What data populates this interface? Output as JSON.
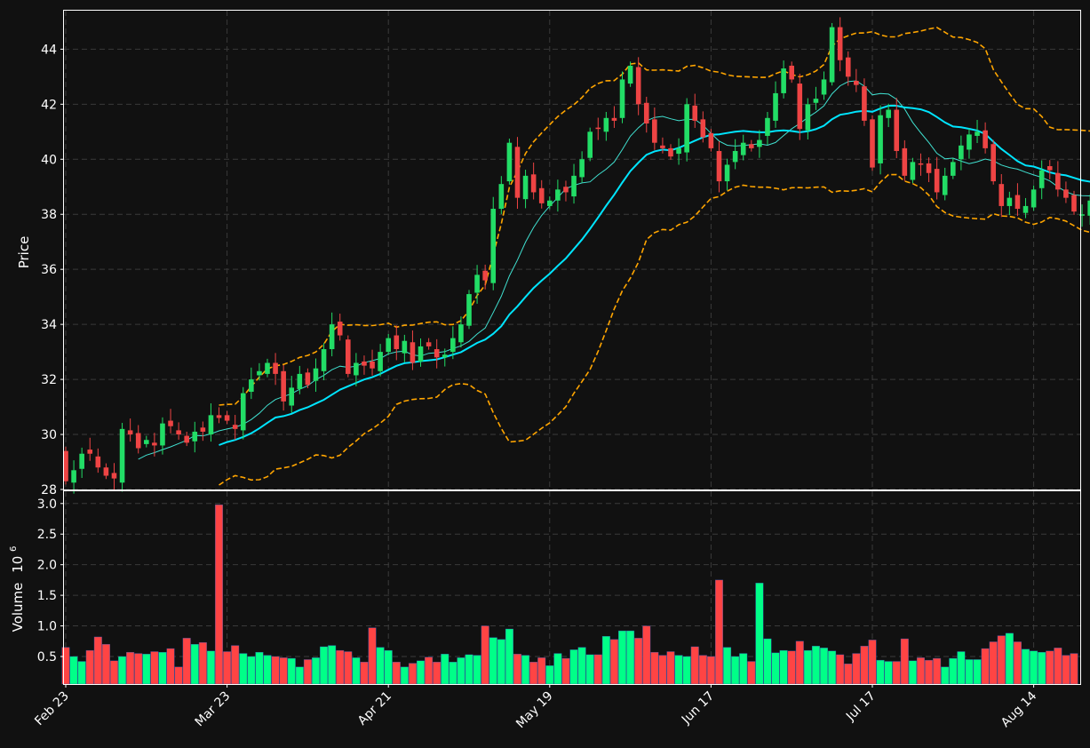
{
  "chart_data": [
    {
      "type": "candlestick",
      "ylabel": "Price",
      "ylim": [
        28,
        45.4
      ],
      "y_ticks": [
        "28",
        "30",
        "32",
        "34",
        "36",
        "38",
        "40",
        "42",
        "44"
      ],
      "x_tick_labels": [
        "Feb 23",
        "Mar 23",
        "Apr 21",
        "May 19",
        "Jun 17",
        "Jul 17",
        "Aug 14"
      ],
      "grid": true,
      "series": [
        {
          "kind": "ohlc",
          "closes": [
            28.3,
            28.7,
            29.3,
            29.3,
            28.8,
            28.5,
            28.4,
            30.2,
            30.0,
            29.5,
            29.8,
            29.6,
            30.4,
            30.3,
            30.0,
            29.7,
            30.1,
            30.1,
            30.7,
            30.6,
            30.5,
            30.2,
            31.5,
            32.0,
            32.3,
            32.6,
            32.2,
            31.2,
            31.7,
            32.2,
            31.8,
            32.4,
            33.1,
            34.0,
            33.6,
            32.2,
            32.6,
            32.5,
            32.4,
            33.0,
            33.5,
            33.1,
            33.4,
            32.6,
            33.2,
            33.2,
            32.8,
            32.9,
            33.5,
            34.0,
            35.1,
            35.8,
            35.6,
            38.2,
            39.1,
            40.6,
            38.6,
            39.4,
            38.8,
            38.4,
            38.5,
            38.9,
            38.8,
            39.4,
            40.0,
            41.0,
            41.1,
            41.5,
            41.4,
            42.9,
            43.4,
            42.0,
            41.3,
            40.6,
            40.4,
            40.1,
            40.4,
            42.0,
            41.4,
            40.8,
            40.4,
            39.2,
            39.8,
            40.3,
            40.6,
            40.4,
            40.7,
            41.5,
            42.4,
            43.3,
            42.9,
            41.1,
            42.0,
            42.2,
            42.9,
            44.8,
            43.6,
            43.0,
            42.7,
            41.4,
            39.7,
            41.6,
            41.8,
            40.3,
            39.4,
            39.9,
            39.8,
            39.5,
            38.8,
            39.4,
            39.9,
            40.5,
            40.9,
            41.0,
            40.4,
            39.2,
            38.3,
            38.6,
            38.2,
            38.3,
            38.9,
            39.6,
            39.6,
            38.9,
            38.6,
            38.1,
            38.0,
            38.5
          ]
        },
        {
          "name": "",
          "kind": "moving_average",
          "color": "#40e0d0"
        },
        {
          "name": "",
          "kind": "moving_average",
          "color": "#00e5ff"
        },
        {
          "name": "",
          "kind": "bollinger_bands",
          "color": "#ffa500",
          "style": "dashed"
        }
      ]
    },
    {
      "type": "bar",
      "ylabel": "Volume",
      "y_unit": "10",
      "y_exponent": "6",
      "ylim": [
        0.05,
        3.2
      ],
      "y_ticks": [
        "0.5",
        "1.0",
        "1.5",
        "2.0",
        "2.5",
        "3.0"
      ],
      "grid": true,
      "colors": {
        "up": "#00ff88",
        "down": "#ff4444"
      },
      "values": [
        0.65,
        0.5,
        0.42,
        0.6,
        0.82,
        0.7,
        0.43,
        0.5,
        0.57,
        0.55,
        0.54,
        0.58,
        0.57,
        0.63,
        0.33,
        0.8,
        0.7,
        0.73,
        0.59,
        2.98,
        0.58,
        0.68,
        0.55,
        0.5,
        0.57,
        0.52,
        0.5,
        0.48,
        0.47,
        0.33,
        0.45,
        0.48,
        0.66,
        0.68,
        0.6,
        0.58,
        0.48,
        0.41,
        0.97,
        0.65,
        0.6,
        0.41,
        0.33,
        0.39,
        0.43,
        0.49,
        0.41,
        0.54,
        0.41,
        0.48,
        0.53,
        0.52,
        1.0,
        0.81,
        0.78,
        0.95,
        0.54,
        0.52,
        0.41,
        0.48,
        0.35,
        0.55,
        0.47,
        0.61,
        0.65,
        0.53,
        0.53,
        0.83,
        0.78,
        0.92,
        0.92,
        0.8,
        1.0,
        0.57,
        0.52,
        0.58,
        0.52,
        0.5,
        0.66,
        0.52,
        0.5,
        1.75,
        0.65,
        0.5,
        0.55,
        0.42,
        1.7,
        0.79,
        0.56,
        0.6,
        0.59,
        0.75,
        0.6,
        0.67,
        0.64,
        0.59,
        0.53,
        0.38,
        0.55,
        0.67,
        0.77,
        0.44,
        0.42,
        0.42,
        0.79,
        0.43,
        0.48,
        0.44,
        0.47,
        0.33,
        0.47,
        0.58,
        0.45,
        0.45,
        0.63,
        0.74,
        0.84,
        0.88,
        0.74,
        0.62,
        0.59,
        0.57,
        0.59,
        0.64,
        0.52,
        0.55
      ]
    }
  ]
}
